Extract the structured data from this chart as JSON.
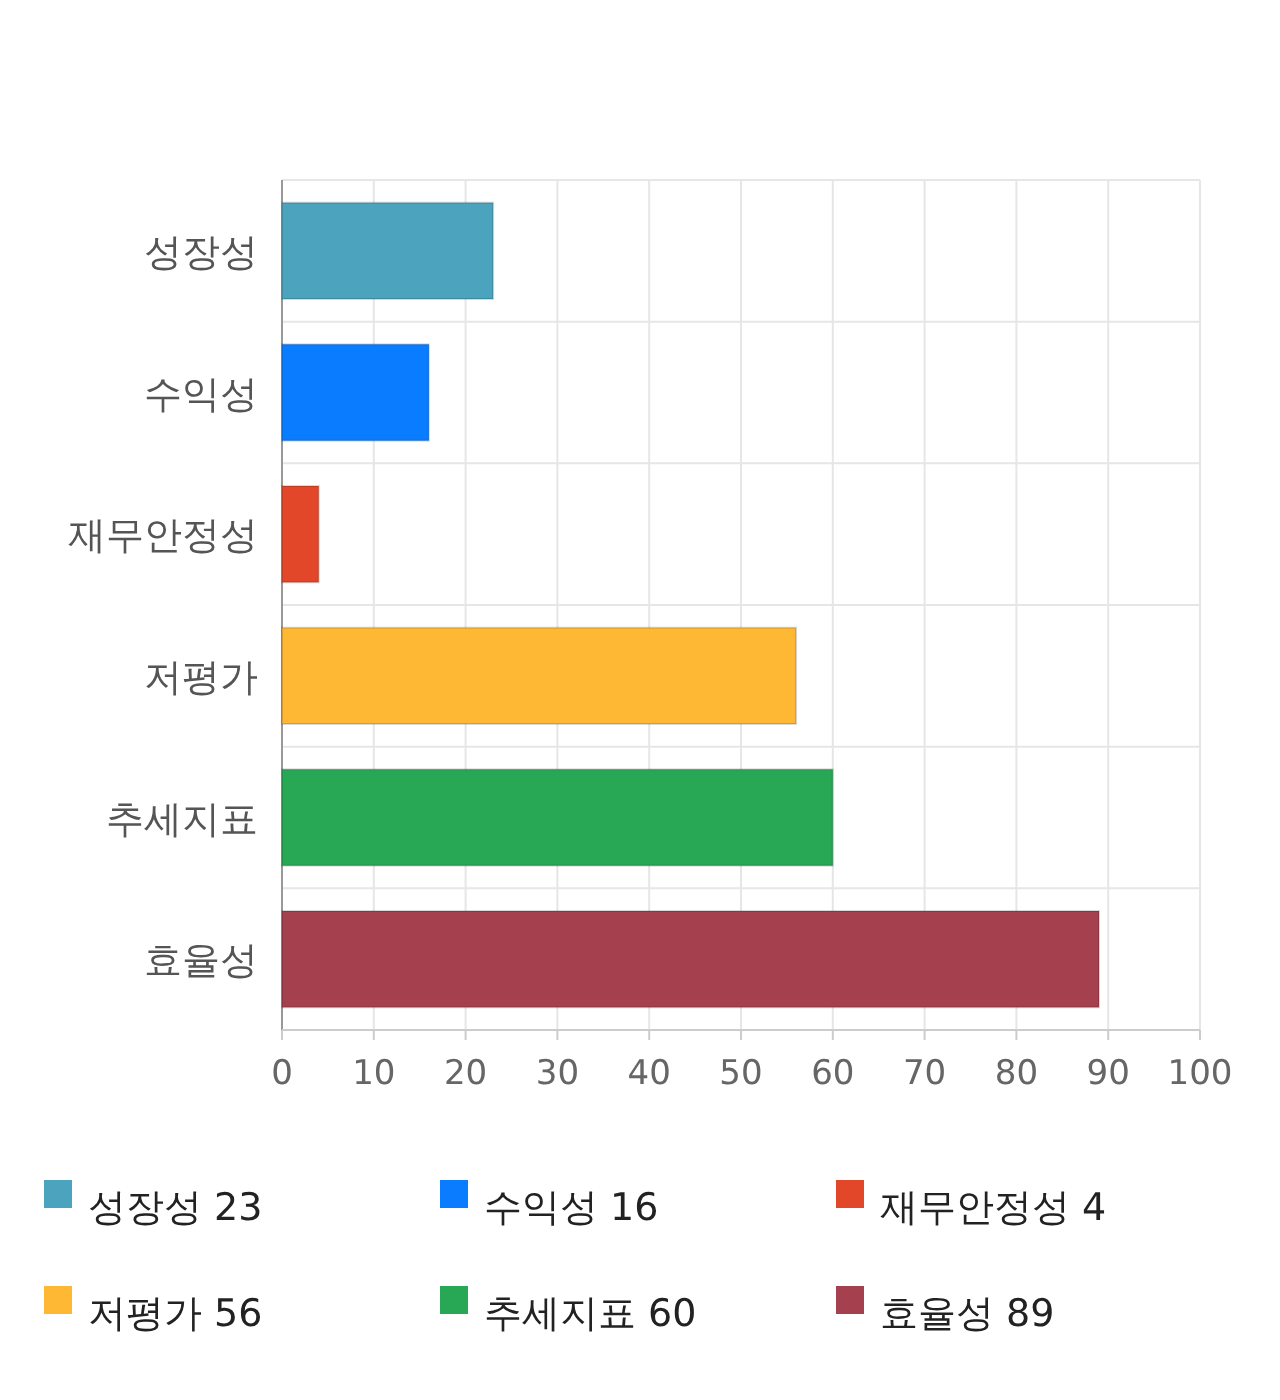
{
  "chart_data": {
    "type": "bar",
    "orientation": "horizontal",
    "categories": [
      "성장성",
      "수익성",
      "재무안정성",
      "저평가",
      "추세지표",
      "효율성"
    ],
    "series": [
      {
        "name": "성장성 23",
        "color": "#4ba3bd",
        "values": [
          23,
          null,
          null,
          null,
          null,
          null
        ]
      },
      {
        "name": "수익성 16",
        "color": "#0a7cff",
        "values": [
          null,
          16,
          null,
          null,
          null,
          null
        ]
      },
      {
        "name": "재무안정성 4",
        "color": "#e2472a",
        "values": [
          null,
          null,
          4,
          null,
          null,
          null
        ]
      },
      {
        "name": "저평가 56",
        "color": "#ffb833",
        "values": [
          null,
          null,
          null,
          56,
          null,
          null
        ]
      },
      {
        "name": "추세지표 60",
        "color": "#28a755",
        "values": [
          null,
          null,
          null,
          null,
          60,
          null
        ]
      },
      {
        "name": "효율성 89",
        "color": "#a5404e",
        "values": [
          null,
          null,
          null,
          null,
          null,
          89
        ]
      }
    ],
    "xlim": [
      0,
      100
    ],
    "xticks": [
      0,
      10,
      20,
      30,
      40,
      50,
      60,
      70,
      80,
      90,
      100
    ],
    "grid": true,
    "legend": "bottom"
  }
}
